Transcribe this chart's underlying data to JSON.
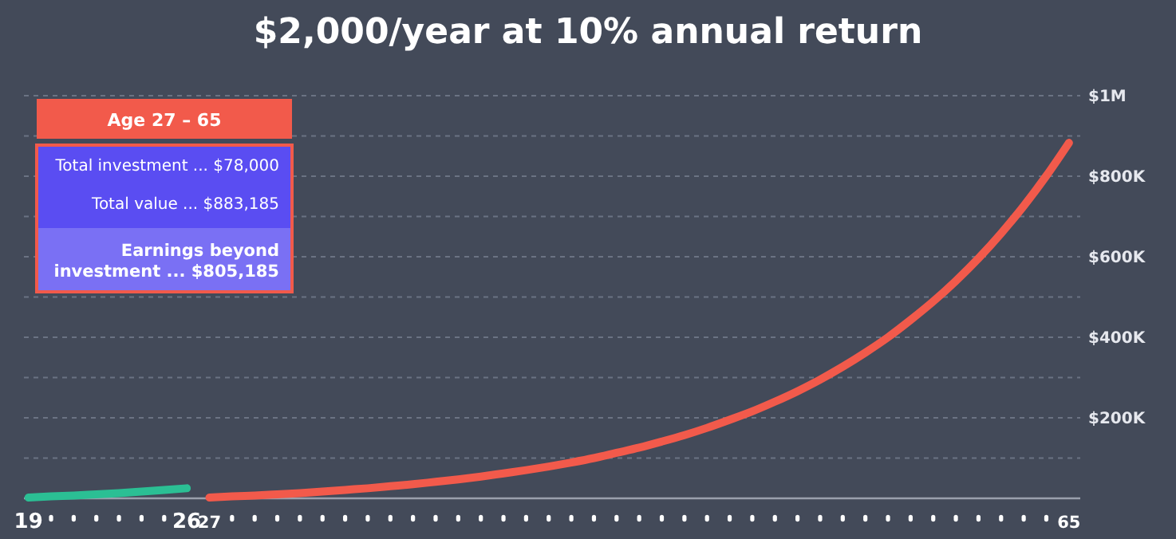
{
  "chart_data": {
    "type": "line",
    "title": "$2,000/year at 10% annual return",
    "xlim": [
      18.8,
      65.5
    ],
    "ylim": [
      0,
      1000000
    ],
    "xticks": [
      19,
      {
        "value": 20,
        "label": null
      },
      {
        "value": 21,
        "label": null
      },
      {
        "value": 22,
        "label": null
      },
      {
        "value": 23,
        "label": null
      },
      {
        "value": 24,
        "label": null
      },
      {
        "value": 25,
        "label": null
      },
      26,
      27,
      {
        "value": 28,
        "label": null
      },
      {
        "value": 29,
        "label": null
      },
      {
        "value": 30,
        "label": null
      },
      {
        "value": 31,
        "label": null
      },
      {
        "value": 32,
        "label": null
      },
      {
        "value": 33,
        "label": null
      },
      {
        "value": 34,
        "label": null
      },
      {
        "value": 35,
        "label": null
      },
      {
        "value": 36,
        "label": null
      },
      {
        "value": 37,
        "label": null
      },
      {
        "value": 38,
        "label": null
      },
      {
        "value": 39,
        "label": null
      },
      {
        "value": 40,
        "label": null
      },
      {
        "value": 41,
        "label": null
      },
      {
        "value": 42,
        "label": null
      },
      {
        "value": 43,
        "label": null
      },
      {
        "value": 44,
        "label": null
      },
      {
        "value": 45,
        "label": null
      },
      {
        "value": 46,
        "label": null
      },
      {
        "value": 47,
        "label": null
      },
      {
        "value": 48,
        "label": null
      },
      {
        "value": 49,
        "label": null
      },
      {
        "value": 50,
        "label": null
      },
      {
        "value": 51,
        "label": null
      },
      {
        "value": 52,
        "label": null
      },
      {
        "value": 53,
        "label": null
      },
      {
        "value": 54,
        "label": null
      },
      {
        "value": 55,
        "label": null
      },
      {
        "value": 56,
        "label": null
      },
      {
        "value": 57,
        "label": null
      },
      {
        "value": 58,
        "label": null
      },
      {
        "value": 59,
        "label": null
      },
      {
        "value": 60,
        "label": null
      },
      {
        "value": 61,
        "label": null
      },
      {
        "value": 62,
        "label": null
      },
      {
        "value": 63,
        "label": null
      },
      {
        "value": 64,
        "label": null
      },
      65
    ],
    "yticks": [
      {
        "value": 100000,
        "label": null
      },
      {
        "value": 200000,
        "label": "$200K"
      },
      {
        "value": 300000,
        "label": null
      },
      {
        "value": 400000,
        "label": "$400K"
      },
      {
        "value": 500000,
        "label": null
      },
      {
        "value": 600000,
        "label": "$600K"
      },
      {
        "value": 700000,
        "label": null
      },
      {
        "value": 800000,
        "label": "$800K"
      },
      {
        "value": 900000,
        "label": null
      },
      {
        "value": 1000000,
        "label": "$1M"
      }
    ],
    "grid": "y",
    "marker": "none",
    "line_style": "solid",
    "series": [
      {
        "color": "#2bbf94",
        "x": [
          19,
          20,
          21,
          22,
          23,
          24,
          25,
          26
        ],
        "values": [
          2000,
          5000,
          7000,
          10000,
          13000,
          17000,
          21000,
          25000
        ]
      },
      {
        "color": "#f25a4b",
        "x": [
          27,
          28,
          29,
          30,
          31,
          32,
          33,
          34,
          35,
          36,
          37,
          38,
          39,
          40,
          41,
          42,
          43,
          44,
          45,
          46,
          47,
          48,
          49,
          50,
          51,
          52,
          53,
          54,
          55,
          56,
          57,
          58,
          59,
          60,
          61,
          62,
          63,
          64,
          65
        ],
        "values": [
          2000,
          5000,
          7000,
          10000,
          13000,
          17000,
          21000,
          25000,
          30000,
          35000,
          41000,
          47000,
          54000,
          62000,
          70000,
          79000,
          89000,
          100000,
          113000,
          126000,
          141000,
          157000,
          175000,
          195000,
          216000,
          240000,
          266000,
          295000,
          327000,
          362000,
          400000,
          443000,
          489000,
          540000,
          596000,
          658000,
          726000,
          801000,
          883000
        ]
      }
    ],
    "annotations": [
      "Age 27 – 65",
      "Total investment ... $78,000",
      "Total value ... $883,185",
      "Earnings beyond investment ... $805,185"
    ]
  }
}
